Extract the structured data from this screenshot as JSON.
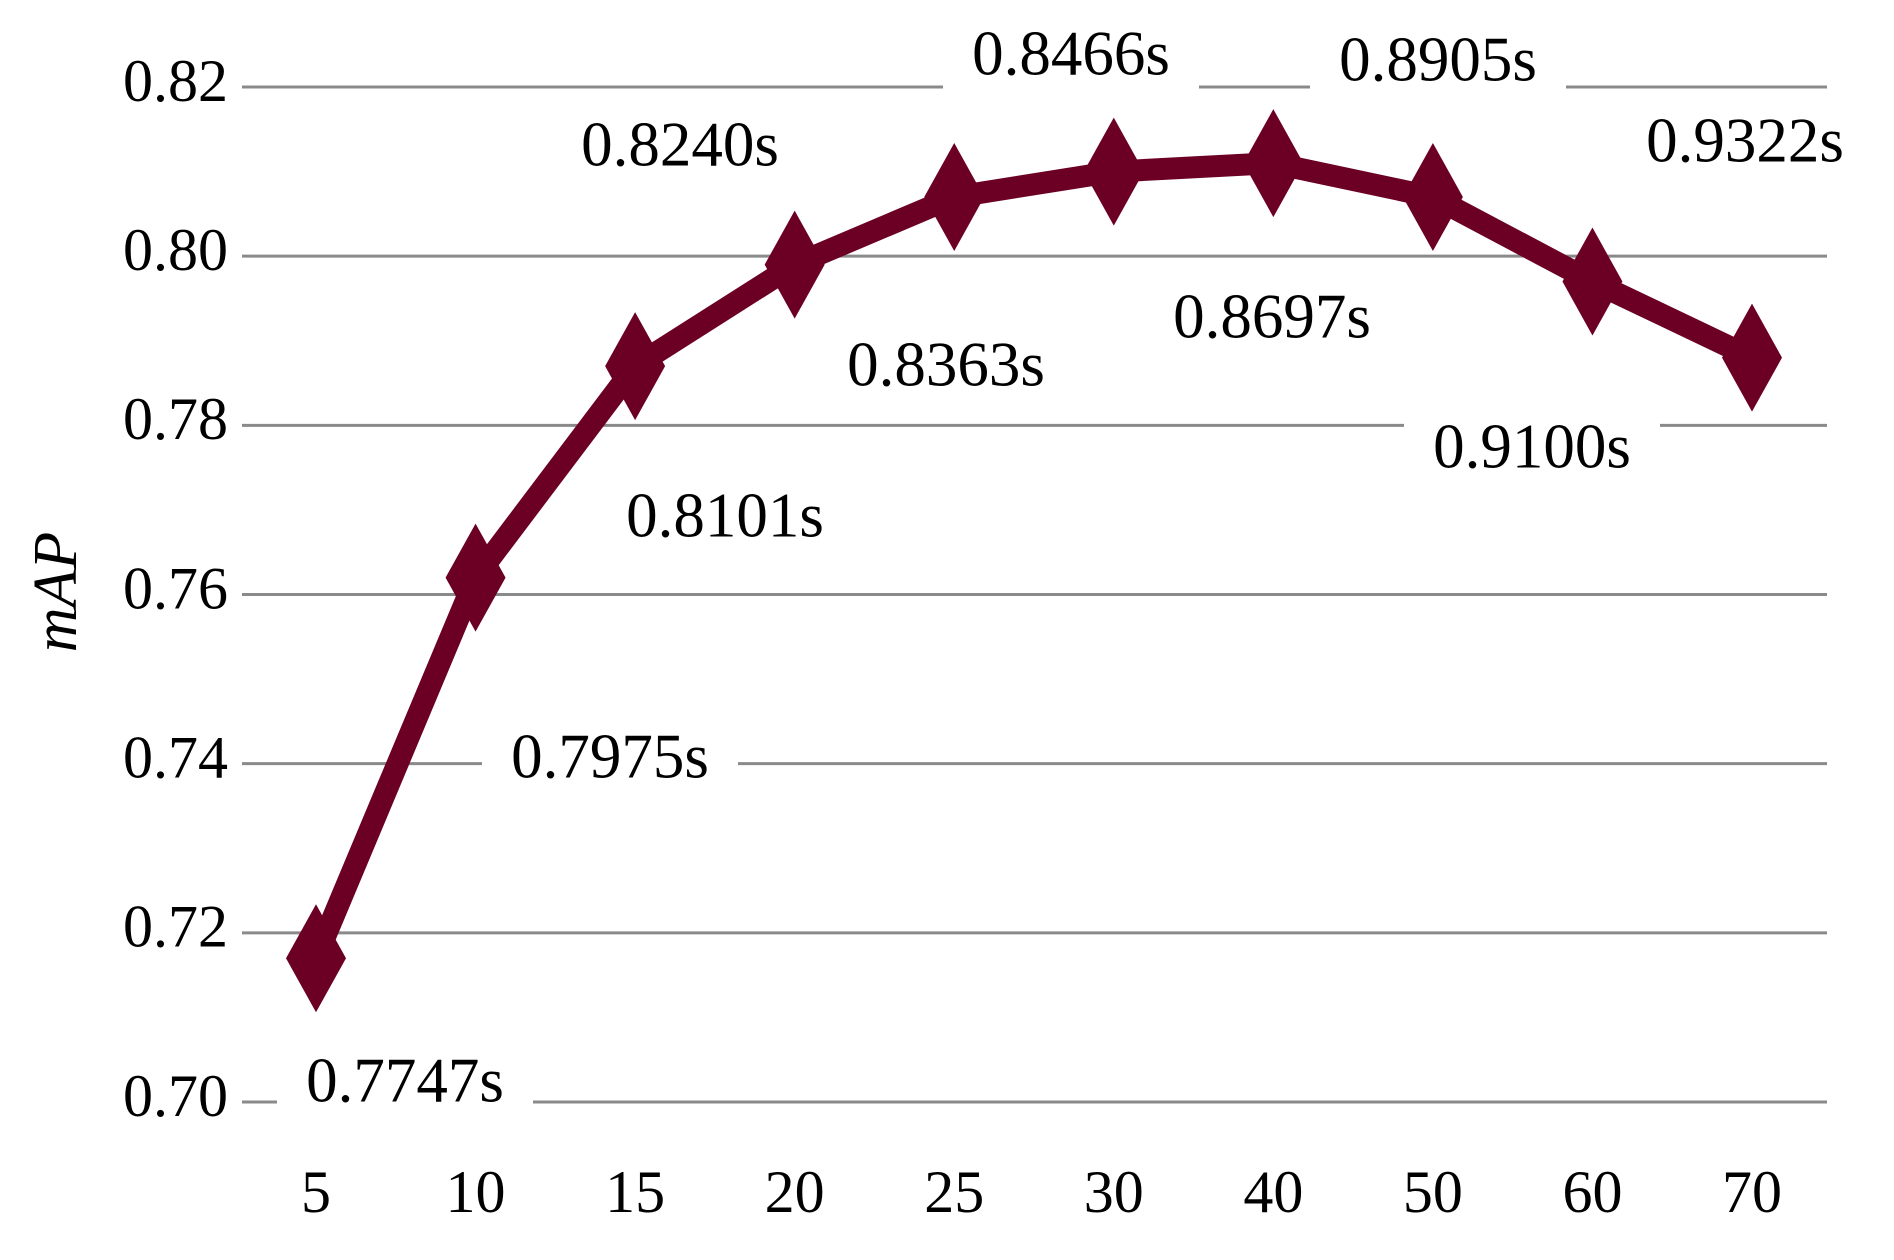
{
  "chart_data": {
    "type": "line",
    "y_label": "mAP",
    "categories": [
      "5",
      "10",
      "15",
      "20",
      "25",
      "30",
      "40",
      "50",
      "60",
      "70"
    ],
    "series": [
      {
        "name": "mAP",
        "color": "#6b0024",
        "values": [
          0.717,
          0.762,
          0.787,
          0.799,
          0.807,
          0.81,
          0.811,
          0.807,
          0.797,
          0.788
        ]
      }
    ],
    "annotations": [
      "0.7747s",
      "0.7975s",
      "0.8101s",
      "0.8240s",
      "0.8363s",
      "0.8466s",
      "0.8697s",
      "0.8905s",
      "0.9100s",
      "0.9322s"
    ],
    "ylim": [
      0.7,
      0.82
    ],
    "yticks": [
      {
        "value": 0.7,
        "label": "0.70"
      },
      0.72,
      0.74,
      0.76,
      0.78,
      {
        "value": 0.8,
        "label": "0.80"
      },
      0.82
    ],
    "grid": true
  }
}
